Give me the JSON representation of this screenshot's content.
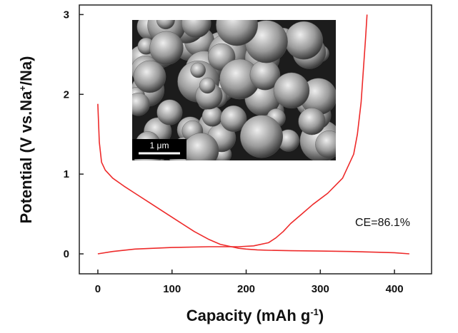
{
  "chart_data": {
    "type": "line",
    "title": "",
    "xlabel": "Capacity (mAh g",
    "xlabel_sup": "-1",
    "xlabel_end": ")",
    "ylabel": "Potential (V vs.Na",
    "ylabel_sup": "+",
    "ylabel_end": "/Na)",
    "xlim": [
      -25,
      450
    ],
    "ylim": [
      -0.25,
      3.12
    ],
    "x_ticks": [
      0,
      100,
      200,
      300,
      400
    ],
    "y_ticks": [
      0,
      1,
      2,
      3
    ],
    "grid": false,
    "line_color": "#ee2a2a",
    "annotation": "CE=86.1%",
    "inset": {
      "scale_bar_label": "1 μm"
    },
    "series": [
      {
        "x": [
          0,
          2,
          5,
          10,
          20,
          35,
          50,
          70,
          90,
          110,
          130,
          150,
          165,
          180,
          190,
          200,
          215,
          230,
          260,
          300,
          340,
          380,
          400,
          420
        ],
        "y": [
          1.88,
          1.4,
          1.15,
          1.05,
          0.95,
          0.85,
          0.76,
          0.64,
          0.52,
          0.4,
          0.28,
          0.18,
          0.12,
          0.09,
          0.07,
          0.06,
          0.05,
          0.045,
          0.04,
          0.035,
          0.03,
          0.02,
          0.015,
          0.0
        ]
      },
      {
        "x": [
          0,
          20,
          50,
          100,
          150,
          190,
          210,
          230,
          240,
          250,
          260,
          275,
          290,
          310,
          330,
          345,
          350,
          355,
          358,
          361,
          363
        ],
        "y": [
          0.0,
          0.03,
          0.06,
          0.08,
          0.09,
          0.09,
          0.1,
          0.14,
          0.2,
          0.28,
          0.38,
          0.5,
          0.62,
          0.76,
          0.95,
          1.25,
          1.5,
          1.9,
          2.3,
          2.7,
          3.0
        ]
      }
    ]
  }
}
